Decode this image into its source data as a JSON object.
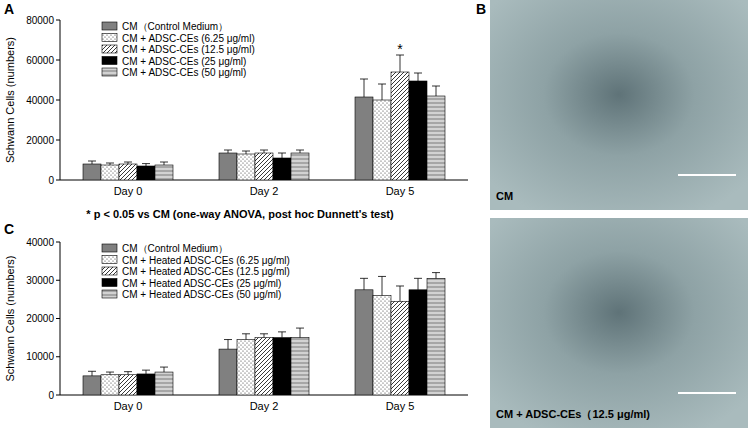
{
  "chart_data": [
    {
      "type": "bar",
      "panel_label": "A",
      "y_label": "Schwann Cells (numbers)",
      "categories": [
        "Day 0",
        "Day 2",
        "Day 5"
      ],
      "series": [
        {
          "name": "CM（Control Medium）",
          "color": "#808080",
          "values": [
            8000,
            13500,
            41500
          ],
          "errors": [
            1500,
            1500,
            9000
          ]
        },
        {
          "name": "CM + ADSC-CEs (6.25 μg/ml)",
          "color": "#ffffff",
          "values": [
            7500,
            13000,
            40000
          ],
          "errors": [
            1000,
            1500,
            8000
          ]
        },
        {
          "name": "CM + ADSC-CEs (12.5 μg/ml)",
          "color": "#ffffff",
          "values": [
            8000,
            13500,
            54000
          ],
          "errors": [
            1000,
            1500,
            8500
          ]
        },
        {
          "name": "CM + ADSC-CEs (25 μg/ml)",
          "color": "#000000",
          "values": [
            7000,
            11000,
            49500
          ],
          "errors": [
            1200,
            2500,
            4000
          ]
        },
        {
          "name": "CM + ADSC-CEs (50 μg/ml)",
          "color": "#a6a6a6",
          "values": [
            7500,
            13500,
            42000
          ],
          "errors": [
            1500,
            1500,
            5000
          ]
        }
      ],
      "annotations": [
        {
          "text": "*",
          "category": "Day 5",
          "series": "CM + ADSC-CEs (12.5 μg/ml)"
        }
      ],
      "ylim": [
        0,
        80000
      ],
      "yticks": [
        0,
        20000,
        40000,
        60000,
        80000
      ],
      "grid": false,
      "legend": "upper left"
    },
    {
      "type": "bar",
      "panel_label": "C",
      "y_label": "Schwann Cells (numbers)",
      "categories": [
        "Day 0",
        "Day 2",
        "Day 5"
      ],
      "series": [
        {
          "name": "CM（Control Medium）",
          "color": "#808080",
          "values": [
            5000,
            12000,
            27500
          ],
          "errors": [
            1200,
            2500,
            3000
          ]
        },
        {
          "name": "CM + Heated ADSC-CEs (6.25 μg/ml)",
          "color": "#ffffff",
          "values": [
            5300,
            14500,
            26000
          ],
          "errors": [
            700,
            1500,
            5000
          ]
        },
        {
          "name": "CM + Heated ADSC-CEs (12.5 μg/ml)",
          "color": "#ffffff",
          "values": [
            5300,
            15000,
            24500
          ],
          "errors": [
            800,
            1000,
            4000
          ]
        },
        {
          "name": "CM + Heated ADSC-CEs (25 μg/ml)",
          "color": "#000000",
          "values": [
            5500,
            15000,
            27500
          ],
          "errors": [
            1000,
            1500,
            3000
          ]
        },
        {
          "name": "CM + Heated ADSC-CEs (50 μg/ml)",
          "color": "#a6a6a6",
          "values": [
            6000,
            15000,
            30500
          ],
          "errors": [
            1300,
            2500,
            1500
          ]
        }
      ],
      "ylim": [
        0,
        40000
      ],
      "yticks": [
        0,
        10000,
        20000,
        30000,
        40000
      ],
      "grid": false,
      "legend": "upper left"
    }
  ],
  "footnote": "* p < 0.05 vs CM (one-way ANOVA, post hoc Dunnett's test)",
  "image_panel": {
    "panel_label": "B",
    "images": [
      {
        "label": "CM"
      },
      {
        "label": "CM + ADSC-CEs（12.5 μg/ml)"
      }
    ]
  }
}
